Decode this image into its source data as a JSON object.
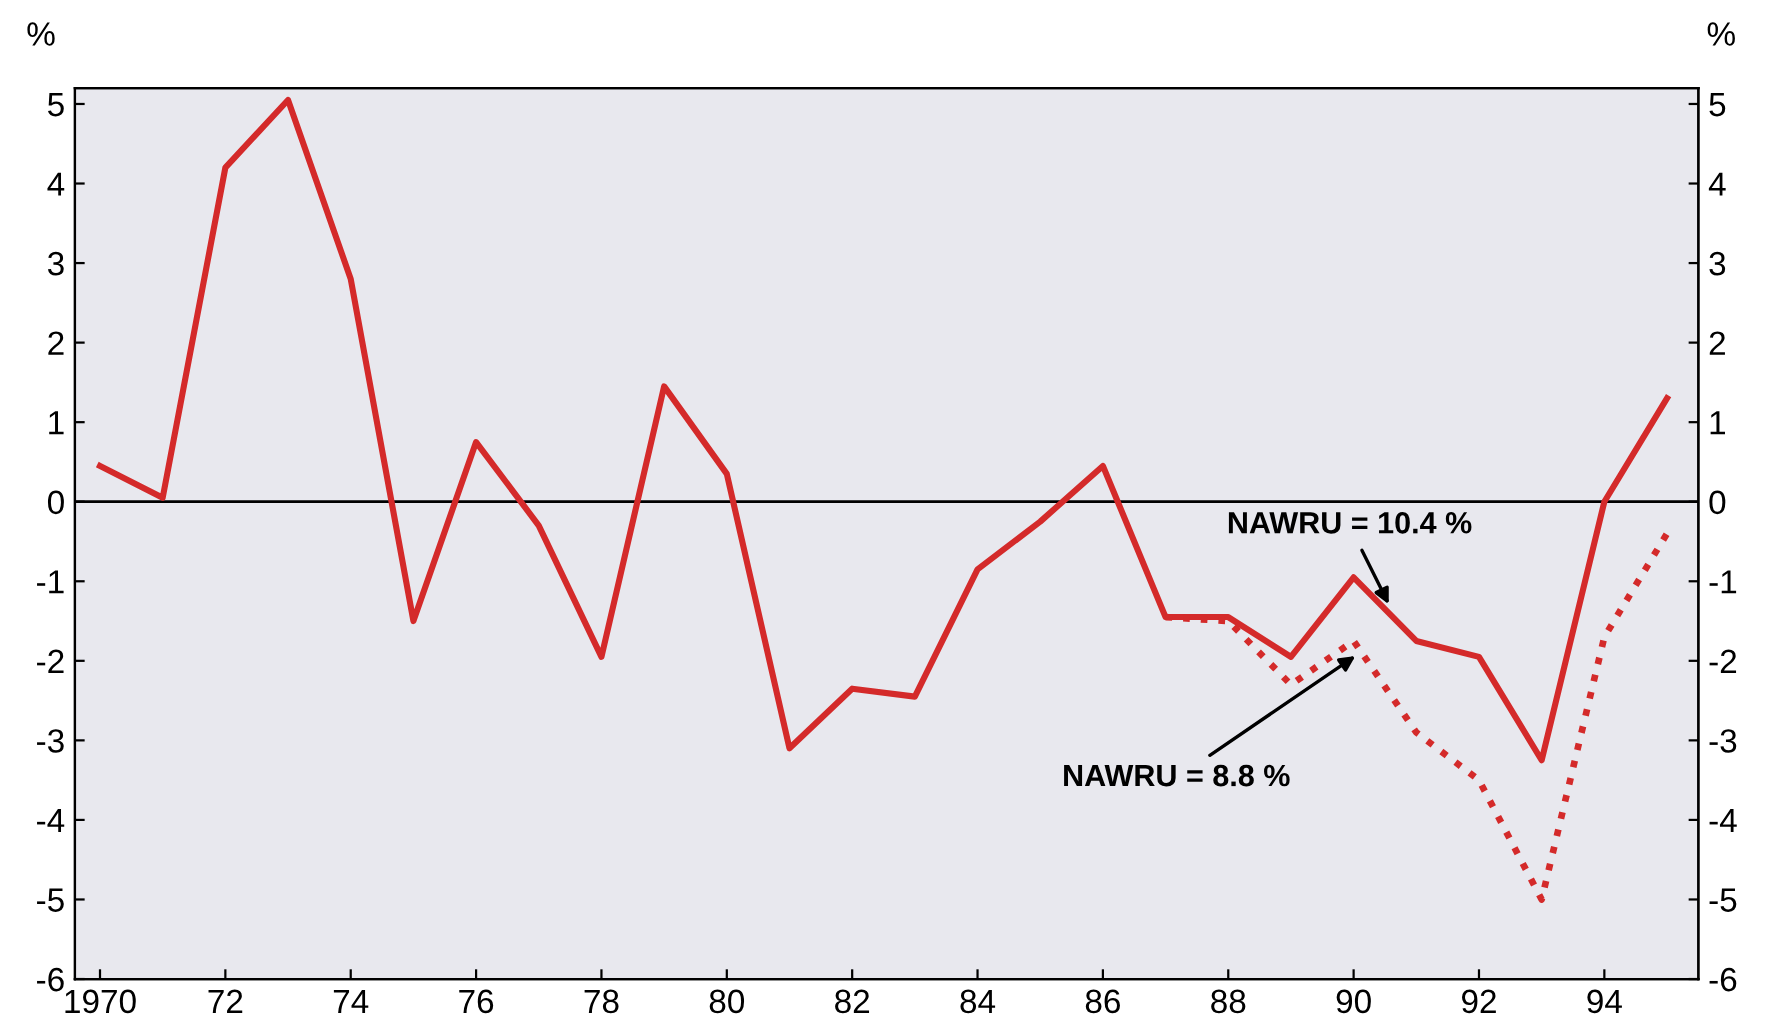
{
  "chart_data": {
    "type": "line",
    "ylabel": "%",
    "y2label": "%",
    "x": [
      1970,
      1971,
      1972,
      1973,
      1974,
      1975,
      1976,
      1977,
      1978,
      1979,
      1980,
      1981,
      1982,
      1983,
      1984,
      1985,
      1986,
      1987,
      1988,
      1989,
      1990,
      1991,
      1992,
      1993,
      1994,
      1995
    ],
    "series": [
      {
        "color": "#d42a2a",
        "line_style": "solid",
        "values": [
          0.45,
          0.05,
          4.2,
          5.05,
          2.8,
          -1.5,
          0.75,
          -0.3,
          -1.95,
          1.45,
          0.35,
          -3.1,
          -2.35,
          -2.45,
          -0.85,
          -0.25,
          0.45,
          -1.45,
          -1.45,
          -1.95,
          -0.95,
          -1.75,
          -1.95,
          -3.25,
          0,
          1.3
        ]
      },
      {
        "color": "#d42a2a",
        "line_style": "dotted",
        "x": [
          1987,
          1988,
          1989,
          1990,
          1991,
          1992,
          1993,
          1994,
          1995
        ],
        "values": [
          -1.45,
          -1.5,
          -2.3,
          -1.75,
          -2.9,
          -3.5,
          -5.0,
          -1.7,
          -0.4
        ]
      }
    ],
    "xlim": [
      1969.6,
      1995.5
    ],
    "xticks": [
      1970,
      {
        "value": 1972,
        "label": "72"
      },
      {
        "value": 1974,
        "label": "74"
      },
      {
        "value": 1976,
        "label": "76"
      },
      {
        "value": 1978,
        "label": "78"
      },
      {
        "value": 1980,
        "label": "80"
      },
      {
        "value": 1982,
        "label": "82"
      },
      {
        "value": 1984,
        "label": "84"
      },
      {
        "value": 1986,
        "label": "86"
      },
      {
        "value": 1988,
        "label": "88"
      },
      {
        "value": 1990,
        "label": "90"
      },
      {
        "value": 1992,
        "label": "92"
      },
      {
        "value": 1994,
        "label": "94"
      }
    ],
    "ylim": [
      -6,
      5.2
    ],
    "yticks": [
      -6,
      -5,
      -4,
      -3,
      -2,
      -1,
      0,
      1,
      2,
      3,
      4,
      5
    ],
    "y2lim": [
      -6,
      5.2
    ],
    "y2ticks": [
      -6,
      -5,
      -4,
      -3,
      -2,
      -1,
      0,
      1,
      2,
      3,
      4,
      5
    ],
    "ref_lines": [
      {
        "axis": "y",
        "value": 0,
        "color": "#000000"
      }
    ],
    "annotations": [
      {
        "text": "NAWRU = 10.4 %",
        "x": 1990.6,
        "y": -1.35
      },
      {
        "text": "NAWRU = 8.8 %",
        "x": 1990.1,
        "y": -1.9
      }
    ],
    "grid": false
  }
}
